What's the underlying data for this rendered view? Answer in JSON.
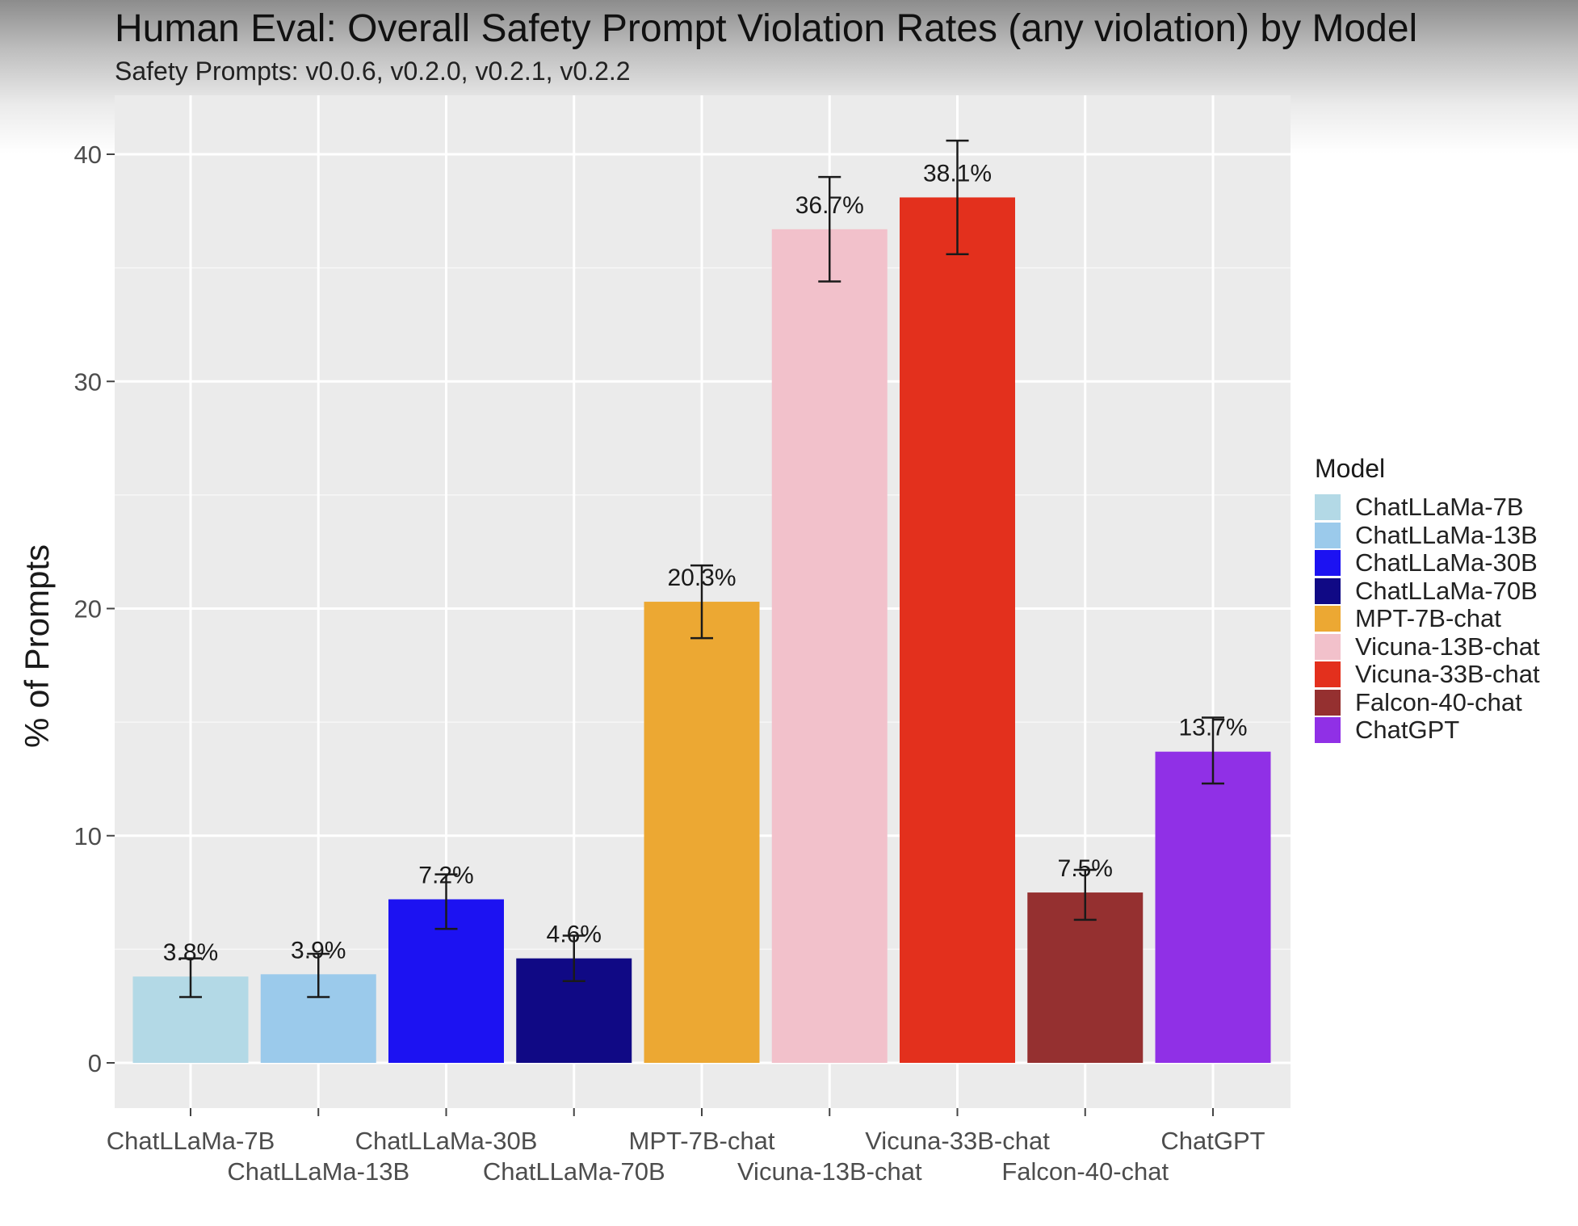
{
  "chart_data": {
    "type": "bar",
    "title": "Human Eval: Overall Safety Prompt Violation Rates (any violation) by Model",
    "subtitle": "Safety Prompts: v0.0.6, v0.2.0, v0.2.1, v0.2.2",
    "ylabel": "% of Prompts",
    "ylim": [
      0,
      42
    ],
    "yticks": [
      0,
      10,
      20,
      30,
      40
    ],
    "grid": true,
    "legend_title": "Model",
    "legend_position": "right",
    "categories": [
      "ChatLLaMa-7B",
      "ChatLLaMa-13B",
      "ChatLLaMa-30B",
      "ChatLLaMa-70B",
      "MPT-7B-chat",
      "Vicuna-13B-chat",
      "Vicuna-33B-chat",
      "Falcon-40-chat",
      "ChatGPT"
    ],
    "values": [
      3.8,
      3.9,
      7.2,
      4.6,
      20.3,
      36.7,
      38.1,
      7.5,
      13.7
    ],
    "data_labels": [
      "3.8%",
      "3.9%",
      "7.2%",
      "4.6%",
      "20.3%",
      "36.7%",
      "38.1%",
      "7.5%",
      "13.7%"
    ],
    "error_low": [
      2.9,
      2.9,
      5.9,
      3.6,
      18.7,
      34.4,
      35.6,
      6.3,
      12.3
    ],
    "error_high": [
      4.6,
      4.8,
      8.3,
      5.6,
      21.9,
      39.0,
      40.6,
      8.5,
      15.2
    ],
    "colors": [
      "#b3d9e6",
      "#9bcaeb",
      "#1c12f2",
      "#100985",
      "#eca833",
      "#f2c1cb",
      "#e3301d",
      "#953030",
      "#9030e6"
    ]
  }
}
